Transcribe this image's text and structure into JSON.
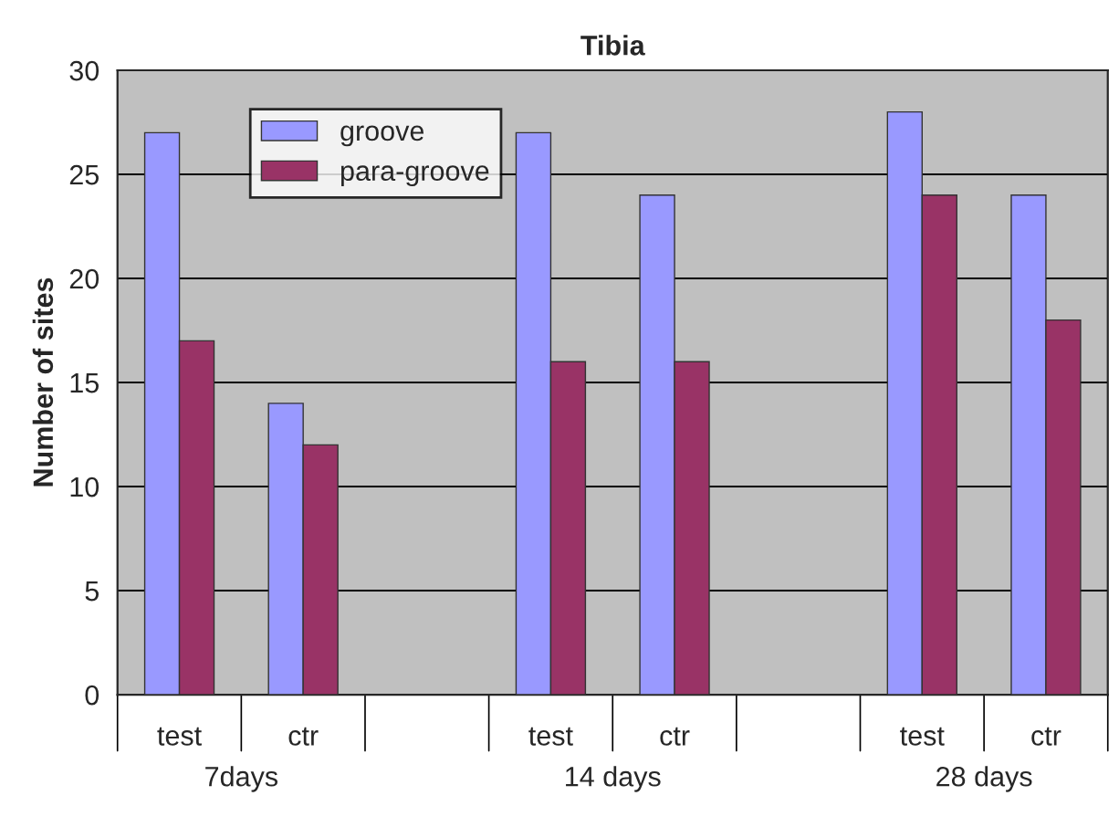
{
  "chart_data": {
    "type": "bar",
    "title": "Tibia",
    "ylabel": "Number of sites",
    "categories": [
      "test",
      "ctr",
      null,
      "test",
      "ctr",
      null,
      "test",
      "ctr"
    ],
    "series": [
      {
        "name": "groove",
        "color": "#9999ff",
        "values": [
          27,
          14,
          null,
          27,
          24,
          null,
          28,
          24
        ]
      },
      {
        "name": "para-groove",
        "color": "#993366",
        "values": [
          17,
          12,
          null,
          16,
          16,
          null,
          24,
          18
        ]
      }
    ],
    "ylim": [
      0,
      30
    ],
    "yticks": [
      0,
      5,
      10,
      15,
      20,
      25,
      30
    ],
    "grid": "y",
    "legend": "top left",
    "annotations": [
      "7days",
      "14 days",
      "28 days"
    ]
  }
}
